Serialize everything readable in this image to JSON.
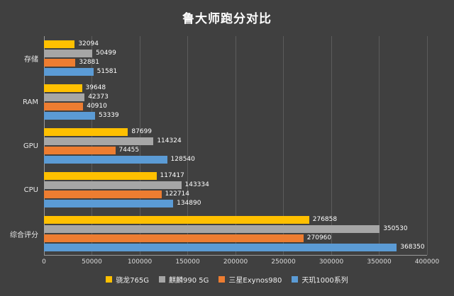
{
  "chart_data": {
    "type": "bar",
    "orientation": "horizontal",
    "title": "鲁大师跑分对比",
    "categories": [
      "存储",
      "RAM",
      "GPU",
      "CPU",
      "综合评分"
    ],
    "series": [
      {
        "name": "骁龙765G",
        "color": "#FFC000",
        "values": [
          32094,
          39648,
          87699,
          117417,
          276858
        ]
      },
      {
        "name": "麒麟990 5G",
        "color": "#A6A6A6",
        "values": [
          50499,
          42373,
          114324,
          143334,
          350530
        ]
      },
      {
        "name": "三星Exynos980",
        "color": "#ED7D31",
        "values": [
          32881,
          40910,
          74455,
          122714,
          270960
        ]
      },
      {
        "name": "天玑1000系列",
        "color": "#5B9BD5",
        "values": [
          51581,
          53339,
          128540,
          134890,
          368350
        ]
      }
    ],
    "xlim": [
      0,
      400000
    ],
    "x_ticks": [
      0,
      50000,
      100000,
      150000,
      200000,
      250000,
      300000,
      350000,
      400000
    ],
    "grid": true,
    "legend_position": "bottom",
    "background_color": "#404040",
    "text_color": "#ffffff"
  }
}
